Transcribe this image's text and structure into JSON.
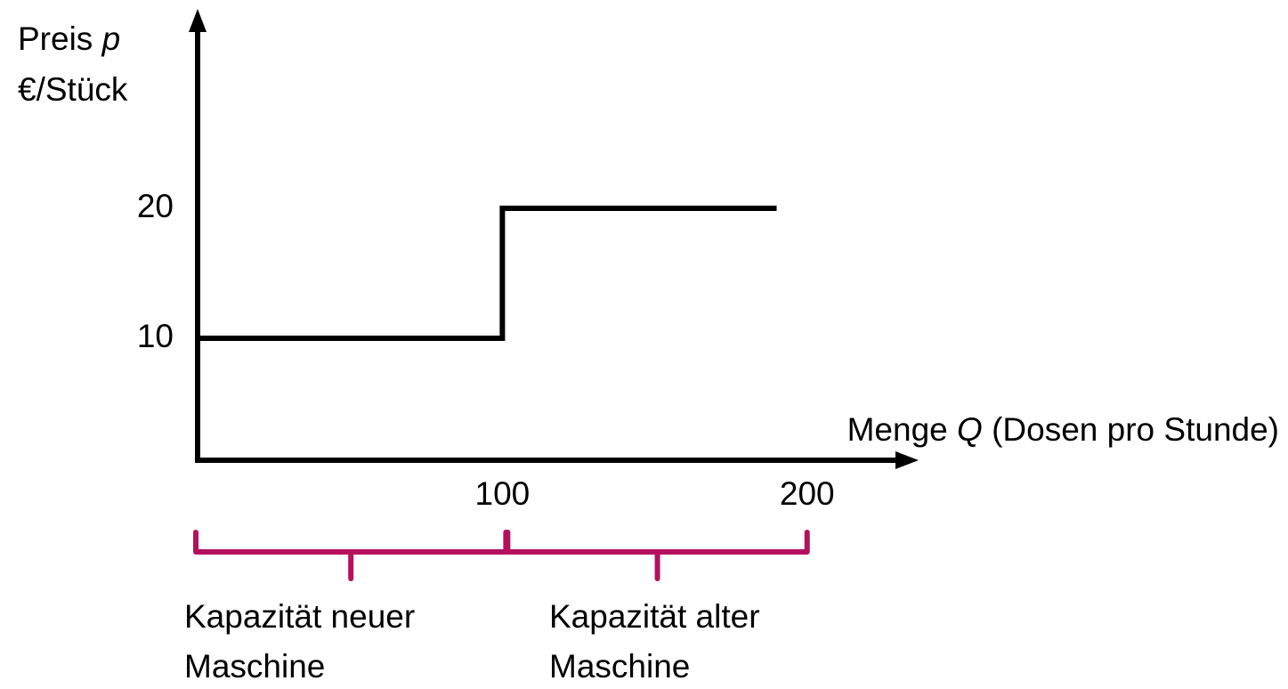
{
  "chart_data": {
    "type": "line",
    "ylabel": [
      "Preis",
      "p",
      "€/Stück"
    ],
    "xlabel": [
      "Menge",
      "Q",
      "(Dosen pro Stunde)"
    ],
    "x": [
      0,
      100,
      100,
      190
    ],
    "series": [
      {
        "color": "#000000",
        "values": [
          10,
          10,
          20,
          20
        ]
      }
    ],
    "xlim": [
      0,
      236
    ],
    "xticks": [
      100,
      200
    ],
    "ylim": [
      0,
      35
    ],
    "yticks": [
      10,
      20
    ],
    "grid": false,
    "annotations": [
      {
        "lines": [
          "Kapazität neuer",
          "Maschine"
        ],
        "xrange": [
          0,
          100
        ],
        "color": "#b5105e"
      },
      {
        "lines": [
          "Kapazität alter",
          "Maschine"
        ],
        "xrange": [
          100,
          200
        ],
        "color": "#b5105e"
      }
    ]
  }
}
